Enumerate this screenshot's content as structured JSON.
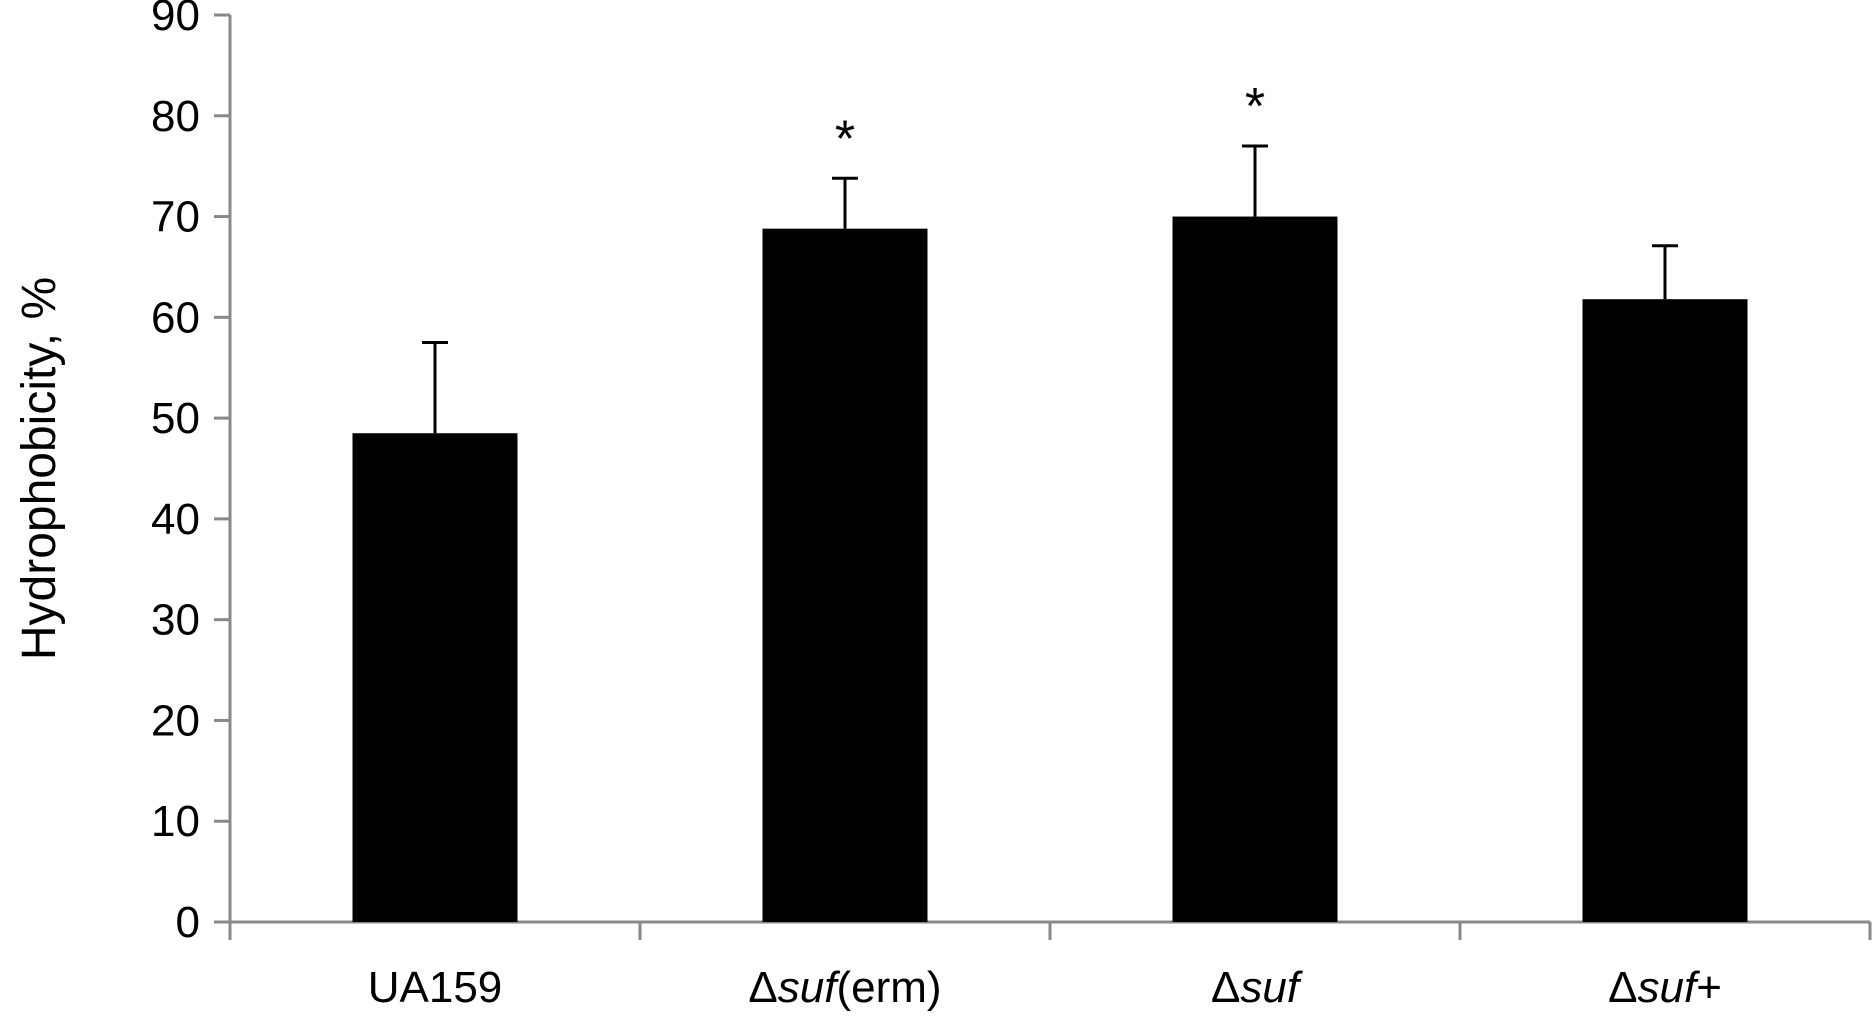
{
  "chart_data": {
    "type": "bar",
    "title": "",
    "xlabel": "",
    "ylabel": "Hydrophobicity, %",
    "ylim": [
      0,
      90
    ],
    "yticks": [
      0,
      10,
      20,
      30,
      40,
      50,
      60,
      70,
      80,
      90
    ],
    "grid": false,
    "legend": "none",
    "bar_color": "#000000",
    "axis_color": "#888888",
    "categories": [
      {
        "label": "UA159",
        "segments": [
          {
            "text": "UA159",
            "italic": false
          }
        ]
      },
      {
        "label": "Δsuf(erm)",
        "segments": [
          {
            "text": "Δ",
            "italic": false
          },
          {
            "text": "suf",
            "italic": true
          },
          {
            "text": "(erm)",
            "italic": false
          }
        ]
      },
      {
        "label": "Δsuf",
        "segments": [
          {
            "text": "Δ",
            "italic": false
          },
          {
            "text": "suf",
            "italic": true
          }
        ]
      },
      {
        "label": "Δsuf+",
        "segments": [
          {
            "text": "Δ",
            "italic": false
          },
          {
            "text": "suf",
            "italic": true
          },
          {
            "text": "+",
            "italic": false
          }
        ]
      }
    ],
    "values": [
      48.5,
      68.8,
      70.0,
      61.8
    ],
    "error_upper": [
      9.0,
      5.0,
      7.0,
      5.3
    ],
    "significance": [
      "",
      "*",
      "*",
      ""
    ]
  }
}
